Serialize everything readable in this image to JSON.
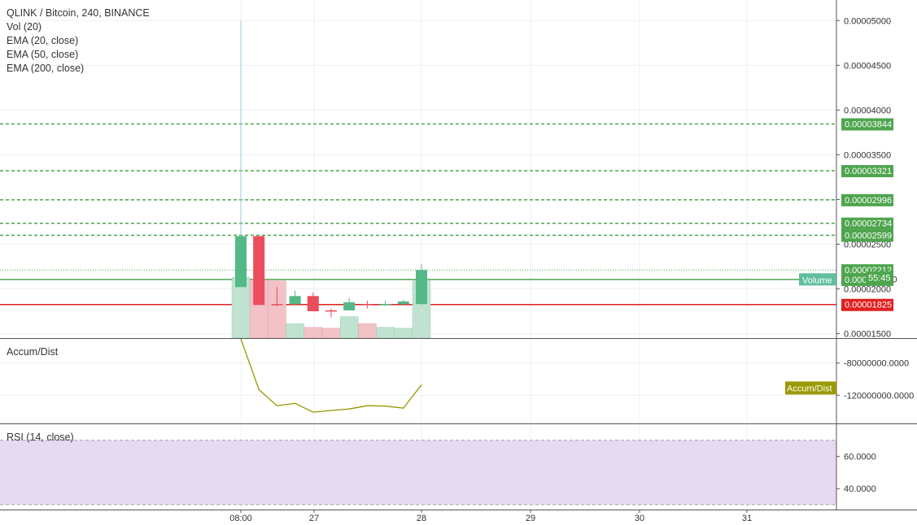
{
  "header": {
    "symbol_line": "QLINK / Bitcoin, 240, BINANCE",
    "indicators": [
      "Vol (20)",
      "EMA (20, close)",
      "EMA (50, close)",
      "EMA (200, close)"
    ]
  },
  "panes": {
    "accum_title": "Accum/Dist",
    "rsi_title": "RSI (14, close)"
  },
  "colors": {
    "up": "#53b987",
    "down": "#eb4d5c",
    "vol_up": "#bfe3d0",
    "vol_down": "#f2c2c7",
    "level": "#4ea54e",
    "support": "#e01f1f",
    "accum": "#999900",
    "rsi_band": "#e6d9f2",
    "grid": "#eef0f3"
  },
  "chart_data": [
    {
      "type": "candlestick",
      "title": "QLINK / Bitcoin, 240, BINANCE",
      "x_ticks": [
        "08:00",
        "27",
        "28",
        "29",
        "30",
        "31"
      ],
      "y_ticks": [
        "0.00005000",
        "0.00004500",
        "0.00004000",
        "0.00003500",
        "0.00003000",
        "0.00002500",
        "0.00002000",
        "0.00001500"
      ],
      "ylim": [
        1.45e-05,
        5.23e-05
      ],
      "candles": [
        {
          "o": 2.02e-05,
          "h": 5e-05,
          "l": 2.02e-05,
          "c": 2.59e-05,
          "v": 0.68
        },
        {
          "o": 2.59e-05,
          "h": 2.59e-05,
          "l": 1.82e-05,
          "c": 1.82e-05,
          "v": 0.65
        },
        {
          "o": 1.83e-05,
          "h": 2.02e-05,
          "l": 1.81e-05,
          "c": 1.82e-05,
          "v": 0.64
        },
        {
          "o": 1.83e-05,
          "h": 1.98e-05,
          "l": 1.81e-05,
          "c": 1.92e-05,
          "v": 0.16
        },
        {
          "o": 1.92e-05,
          "h": 1.96e-05,
          "l": 1.75e-05,
          "c": 1.75e-05,
          "v": 0.12
        },
        {
          "o": 1.76e-05,
          "h": 1.78e-05,
          "l": 1.68e-05,
          "c": 1.75e-05,
          "v": 0.11
        },
        {
          "o": 1.76e-05,
          "h": 1.9e-05,
          "l": 1.76e-05,
          "c": 1.85e-05,
          "v": 0.24
        },
        {
          "o": 1.83e-05,
          "h": 1.87e-05,
          "l": 1.78e-05,
          "c": 1.82e-05,
          "v": 0.16
        },
        {
          "o": 1.82e-05,
          "h": 1.87e-05,
          "l": 1.81e-05,
          "c": 1.83e-05,
          "v": 0.12
        },
        {
          "o": 1.83e-05,
          "h": 1.88e-05,
          "l": 1.81e-05,
          "c": 1.86e-05,
          "v": 0.11
        },
        {
          "o": 1.83e-05,
          "h": 2.28e-05,
          "l": 1.82e-05,
          "c": 2.21e-05,
          "v": 0.64
        }
      ],
      "levels": [
        {
          "value": 3.844e-05,
          "label": "0.00003844",
          "style": "dashed"
        },
        {
          "value": 3.321e-05,
          "label": "0.00003321",
          "style": "dashed"
        },
        {
          "value": 2.996e-05,
          "label": "0.00002996",
          "style": "dashed"
        },
        {
          "value": 2.734e-05,
          "label": "0.00002734",
          "style": "dashed"
        },
        {
          "value": 2.599e-05,
          "label": "0.00002599",
          "style": "dashed"
        },
        {
          "value": 2.212e-05,
          "label": "0.00002212",
          "style": "dotted"
        },
        {
          "value": 2.105e-05,
          "label": "0.00002105",
          "style": "solid"
        },
        {
          "value": 1.825e-05,
          "label": "0.00001825",
          "style": "support"
        }
      ],
      "volume_label": "Volume",
      "timer_label": "55:45",
      "partial_price_label": "0.0000"
    },
    {
      "type": "line",
      "title": "Accum/Dist",
      "y_ticks": [
        "-80000000.0000",
        "-120000000.0000"
      ],
      "ylim": [
        -155000000,
        -50000000
      ],
      "values": [
        -50000000,
        -113000000,
        -133000000,
        -130000000,
        -141000000,
        -139000000,
        -137000000,
        -133000000,
        -133500000,
        -136000000,
        -107000000
      ],
      "label": "Accum/Dist"
    },
    {
      "type": "line",
      "title": "RSI (14, close)",
      "y_ticks": [
        "60.0000",
        "40.0000"
      ],
      "ylim": [
        27,
        80
      ],
      "band": [
        30,
        70
      ],
      "values": []
    }
  ]
}
